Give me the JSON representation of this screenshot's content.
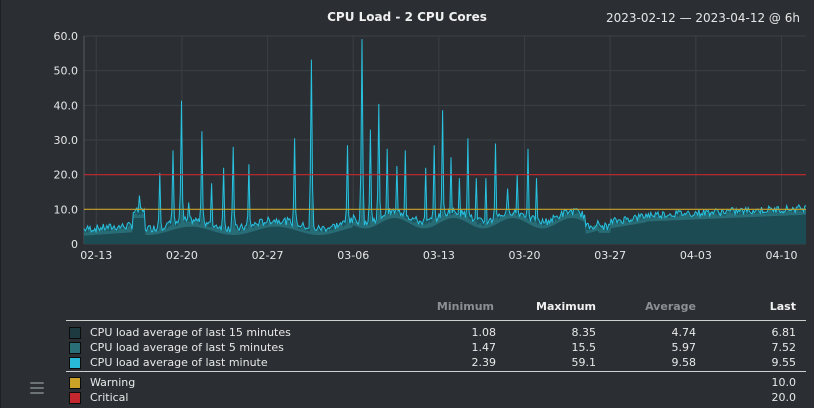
{
  "header": {
    "title": "CPU Load - 2 CPU Cores",
    "date_range": "2023-02-12 — 2023-04-12 @ 6h"
  },
  "colors": {
    "background": "#2b2f33",
    "grid": "#3a4046",
    "load15": "#1c4a52",
    "load5": "#2a6f78",
    "load1": "#28c2e0",
    "warning": "#c9a227",
    "critical": "#c2282d"
  },
  "chart_data": {
    "type": "area",
    "x_tick_labels": [
      "02-13",
      "02-20",
      "02-27",
      "03-06",
      "03-13",
      "03-20",
      "03-27",
      "04-03",
      "04-10"
    ],
    "y_tick_labels": [
      "0",
      "10.0",
      "20.0",
      "30.0",
      "40.0",
      "50.0",
      "60.0"
    ],
    "ylim": [
      0,
      60
    ],
    "x_domain_days": [
      0,
      59
    ],
    "grid": true,
    "thresholds": [
      {
        "name": "Warning",
        "value": 10.0,
        "color": "#c9a227"
      },
      {
        "name": "Critical",
        "value": 20.0,
        "color": "#c2282d"
      }
    ],
    "series_spikes_last_minute": [
      {
        "day": 4.5,
        "value": 14
      },
      {
        "day": 6.2,
        "value": 20.5
      },
      {
        "day": 7.3,
        "value": 27
      },
      {
        "day": 8.0,
        "value": 41.3
      },
      {
        "day": 8.6,
        "value": 12
      },
      {
        "day": 9.6,
        "value": 32.5
      },
      {
        "day": 10.4,
        "value": 17.5
      },
      {
        "day": 11.4,
        "value": 22
      },
      {
        "day": 12.2,
        "value": 28
      },
      {
        "day": 13.5,
        "value": 23
      },
      {
        "day": 17.2,
        "value": 30.5
      },
      {
        "day": 18.6,
        "value": 53.2
      },
      {
        "day": 21.5,
        "value": 28.5
      },
      {
        "day": 22.7,
        "value": 59.1
      },
      {
        "day": 23.4,
        "value": 33
      },
      {
        "day": 24.1,
        "value": 40.4
      },
      {
        "day": 24.8,
        "value": 27.5
      },
      {
        "day": 25.6,
        "value": 22.5
      },
      {
        "day": 26.3,
        "value": 27
      },
      {
        "day": 27.9,
        "value": 22
      },
      {
        "day": 28.6,
        "value": 28.5
      },
      {
        "day": 29.3,
        "value": 38.6
      },
      {
        "day": 30.0,
        "value": 25
      },
      {
        "day": 30.7,
        "value": 19
      },
      {
        "day": 31.4,
        "value": 30.5
      },
      {
        "day": 32.1,
        "value": 19
      },
      {
        "day": 32.8,
        "value": 19
      },
      {
        "day": 33.6,
        "value": 29
      },
      {
        "day": 34.6,
        "value": 16
      },
      {
        "day": 35.4,
        "value": 20
      },
      {
        "day": 36.3,
        "value": 27.5
      },
      {
        "day": 37.0,
        "value": 19
      }
    ],
    "series_names": [
      "CPU load average of last 15 minutes",
      "CPU load average of last 5 minutes",
      "CPU load average of last minute"
    ]
  },
  "legend": {
    "headers": {
      "minimum": "Minimum",
      "maximum": "Maximum",
      "average": "Average",
      "last": "Last"
    },
    "rows": [
      {
        "label": "CPU load average of last 15 minutes",
        "min": "1.08",
        "max": "8.35",
        "avg": "4.74",
        "last": "6.81",
        "color": "#1c3a40"
      },
      {
        "label": "CPU load average of last 5 minutes",
        "min": "1.47",
        "max": "15.5",
        "avg": "5.97",
        "last": "7.52",
        "color": "#2a6f78"
      },
      {
        "label": "CPU load average of last minute",
        "min": "2.39",
        "max": "59.1",
        "avg": "9.58",
        "last": "9.55",
        "color": "#28b8d8"
      }
    ],
    "thresholds": [
      {
        "label": "Warning",
        "last": "10.0",
        "color": "#c9a227"
      },
      {
        "label": "Critical",
        "last": "20.0",
        "color": "#c2282d"
      }
    ]
  }
}
